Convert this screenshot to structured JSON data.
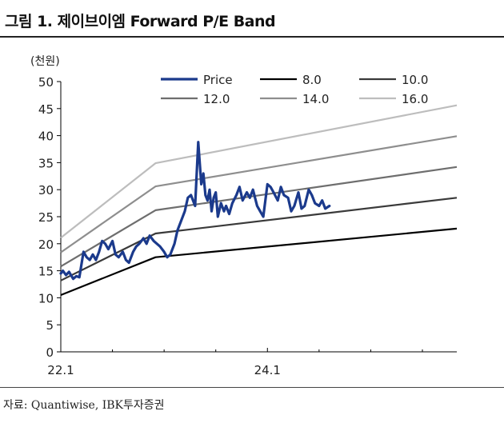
{
  "figure": {
    "title": "그림 1. 제이브이엠 Forward P/E Band",
    "source": "자료: Quantiwise, IBK투자증권"
  },
  "chart_data": {
    "type": "line",
    "unit_label": "(천원)",
    "x_ticks": [
      "22.1",
      "24.1"
    ],
    "ylim": [
      0,
      50
    ],
    "y_ticks": [
      0,
      5,
      10,
      15,
      20,
      25,
      30,
      35,
      40,
      45,
      50
    ],
    "grid": false,
    "legend_position": "top-right",
    "x_range": [
      2022.0,
      2025.833
    ],
    "band_points_x": [
      2022.0,
      2022.917,
      2025.833
    ],
    "series": [
      {
        "name": "Price",
        "color": "#1b3a8c",
        "x": [
          2022.0,
          2022.02,
          2022.05,
          2022.08,
          2022.12,
          2022.15,
          2022.18,
          2022.22,
          2022.25,
          2022.28,
          2022.31,
          2022.34,
          2022.37,
          2022.4,
          2022.43,
          2022.46,
          2022.5,
          2022.53,
          2022.56,
          2022.6,
          2022.63,
          2022.66,
          2022.7,
          2022.73,
          2022.76,
          2022.8,
          2022.83,
          2022.86,
          2022.9,
          2022.93,
          2022.96,
          2023.0,
          2023.03,
          2023.06,
          2023.1,
          2023.13,
          2023.16,
          2023.2,
          2023.23,
          2023.26,
          2023.3,
          2023.33,
          2023.36,
          2023.38,
          2023.4,
          2023.42,
          2023.44,
          2023.46,
          2023.48,
          2023.5,
          2023.52,
          2023.55,
          2023.58,
          2023.6,
          2023.63,
          2023.66,
          2023.7,
          2023.73,
          2023.76,
          2023.8,
          2023.83,
          2023.86,
          2023.9,
          2023.93,
          2023.96,
          2024.0,
          2024.03,
          2024.06,
          2024.1,
          2024.13,
          2024.16,
          2024.2,
          2024.23,
          2024.26,
          2024.3,
          2024.33,
          2024.36,
          2024.4,
          2024.43,
          2024.46,
          2024.5,
          2024.53,
          2024.56,
          2024.6
        ],
        "values": [
          14.5,
          15.0,
          14.2,
          14.8,
          13.5,
          14.0,
          13.8,
          18.5,
          17.5,
          17.0,
          18.0,
          17.0,
          18.5,
          20.5,
          20.0,
          19.0,
          20.5,
          18.0,
          17.5,
          18.5,
          17.0,
          16.5,
          18.5,
          19.5,
          20.0,
          21.0,
          20.0,
          21.5,
          20.5,
          20.0,
          19.5,
          18.5,
          17.5,
          18.0,
          20.0,
          22.5,
          24.0,
          26.0,
          28.5,
          29.0,
          27.0,
          38.8,
          31.0,
          33.0,
          29.0,
          28.0,
          30.0,
          26.0,
          28.5,
          29.5,
          25.0,
          27.5,
          26.0,
          27.0,
          25.5,
          27.5,
          29.0,
          30.5,
          28.0,
          29.5,
          28.5,
          30.0,
          27.0,
          26.0,
          25.0,
          31.0,
          30.5,
          29.5,
          28.0,
          30.5,
          29.0,
          28.5,
          26.0,
          27.0,
          29.5,
          26.5,
          27.0,
          30.0,
          29.0,
          27.5,
          27.0,
          28.0,
          26.5,
          27.0
        ]
      },
      {
        "name": "8.0",
        "color": "#000000",
        "values": [
          10.5,
          17.5,
          22.8
        ]
      },
      {
        "name": "10.0",
        "color": "#3a3a3a",
        "values": [
          13.2,
          21.9,
          28.5
        ]
      },
      {
        "name": "12.0",
        "color": "#6e6e6e",
        "values": [
          15.8,
          26.2,
          34.2
        ]
      },
      {
        "name": "14.0",
        "color": "#8e8e8e",
        "values": [
          18.4,
          30.6,
          39.9
        ]
      },
      {
        "name": "16.0",
        "color": "#bdbdbd",
        "values": [
          21.1,
          34.9,
          45.6
        ]
      }
    ]
  }
}
